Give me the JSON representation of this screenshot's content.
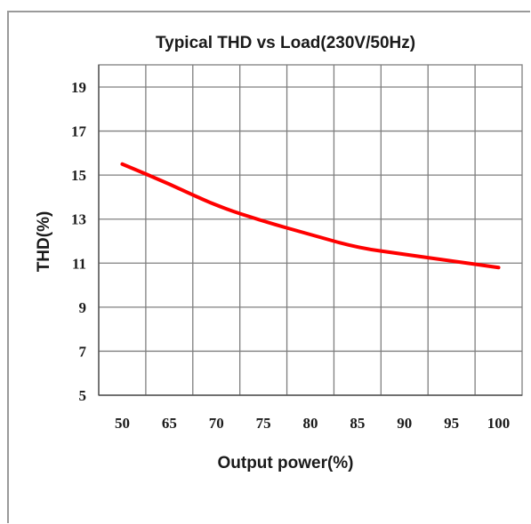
{
  "chart_data": {
    "type": "line",
    "title": "Typical THD vs Load(230V/50Hz)",
    "xlabel": "Output power(%)",
    "ylabel": "THD(%)",
    "x_ticks": [
      "50",
      "65",
      "70",
      "75",
      "80",
      "85",
      "90",
      "95",
      "100"
    ],
    "y_ticks": [
      "19",
      "17",
      "15",
      "13",
      "11",
      "9",
      "7",
      "5"
    ],
    "ylim": [
      5,
      19
    ],
    "grid": true,
    "series": [
      {
        "color": "#ff0000",
        "x_index": [
          0,
          1,
          2,
          3,
          4,
          5,
          6,
          7,
          8
        ],
        "values": [
          15.5,
          14.6,
          13.6,
          12.9,
          12.3,
          11.7,
          11.4,
          11.1,
          10.8
        ]
      }
    ]
  }
}
